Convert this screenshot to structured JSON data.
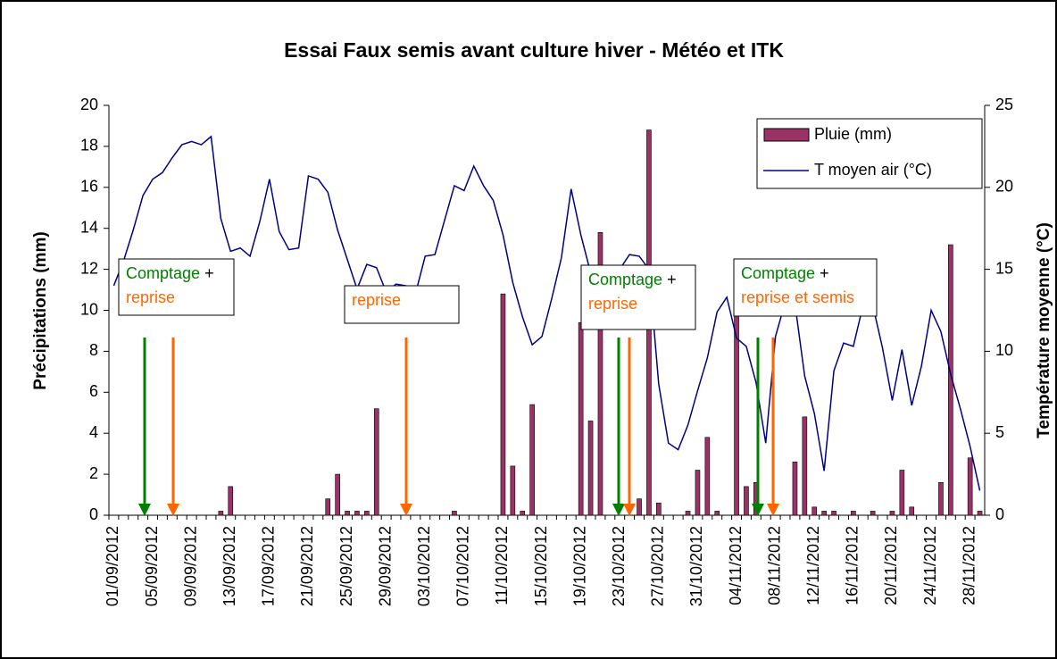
{
  "chart_data": {
    "type": "bar-line",
    "title": "Essai Faux semis avant culture hiver - Météo et ITK",
    "y_label": "Précipitations (mm)",
    "y2_label": "Température moyenne (°C)",
    "categories": [
      "01/09/2012",
      null,
      null,
      null,
      "05/09/2012",
      null,
      null,
      null,
      "09/09/2012",
      null,
      null,
      null,
      "13/09/2012",
      null,
      null,
      null,
      "17/09/2012",
      null,
      null,
      null,
      "21/09/2012",
      null,
      null,
      null,
      "25/09/2012",
      null,
      null,
      null,
      "29/09/2012",
      null,
      null,
      null,
      "03/10/2012",
      null,
      null,
      null,
      "07/10/2012",
      null,
      null,
      null,
      "11/10/2012",
      null,
      null,
      null,
      "15/10/2012",
      null,
      null,
      null,
      "19/10/2012",
      null,
      null,
      null,
      "23/10/2012",
      null,
      null,
      null,
      "27/10/2012",
      null,
      null,
      null,
      "31/10/2012",
      null,
      null,
      null,
      "04/11/2012",
      null,
      null,
      null,
      "08/11/2012",
      null,
      null,
      null,
      "12/11/2012",
      null,
      null,
      null,
      "16/11/2012",
      null,
      null,
      null,
      "20/11/2012",
      null,
      null,
      null,
      "24/11/2012",
      null,
      null,
      null,
      "28/11/2012",
      null
    ],
    "series": [
      {
        "name": "Pluie (mm)",
        "type": "bar",
        "color": "#993366",
        "values": [
          0,
          0,
          0,
          0,
          0,
          0,
          0,
          0,
          0,
          0,
          0,
          0.2,
          1.4,
          0,
          0,
          0,
          0,
          0,
          0,
          0,
          0,
          0,
          0.8,
          2.0,
          0.2,
          0.2,
          0.2,
          5.2,
          0,
          0,
          0,
          0,
          0,
          0,
          0,
          0.2,
          0,
          0,
          0,
          0,
          10.8,
          2.4,
          0.2,
          5.4,
          0,
          0,
          0,
          0,
          9.4,
          4.6,
          13.8,
          0,
          0,
          0,
          0.8,
          18.8,
          0.6,
          0,
          0,
          0.2,
          2.2,
          3.8,
          0.2,
          0,
          10.8,
          1.4,
          1.6,
          0,
          0,
          0,
          2.6,
          4.8,
          0.4,
          0.2,
          0.2,
          0,
          0.2,
          0,
          0.2,
          0,
          0.2,
          2.2,
          0.4,
          0,
          0,
          1.6,
          13.2,
          0,
          2.8,
          0.2
        ]
      },
      {
        "name": "T moyen air (°C)",
        "type": "line",
        "axis": "y2",
        "color": "#000080",
        "values": [
          14.0,
          15.5,
          17.4,
          19.5,
          20.5,
          20.9,
          21.8,
          22.6,
          22.8,
          22.6,
          23.1,
          18.1,
          16.1,
          16.3,
          15.8,
          17.9,
          20.5,
          17.3,
          16.2,
          16.3,
          20.7,
          20.5,
          19.7,
          17.4,
          15.6,
          13.8,
          15.3,
          15.1,
          13.6,
          14.1,
          14.0,
          13.5,
          15.8,
          15.9,
          18.0,
          20.1,
          19.8,
          21.3,
          20.1,
          19.2,
          17.1,
          14.2,
          12.1,
          10.4,
          10.9,
          13.2,
          15.7,
          19.9,
          17.1,
          14.8,
          15.2,
          15.1,
          15.0,
          15.9,
          15.8,
          15.0,
          8.0,
          4.4,
          4.0,
          5.5,
          7.6,
          9.6,
          12.4,
          13.3,
          10.8,
          10.3,
          8.1,
          4.4,
          10.9,
          13.0,
          12.9,
          8.5,
          6.2,
          2.7,
          8.8,
          10.5,
          10.3,
          12.8,
          12.8,
          10.2,
          7.0,
          10.1,
          6.7,
          9.1,
          12.5,
          11.2,
          8.6,
          6.5,
          4.2,
          1.5
        ]
      }
    ],
    "ylim": [
      0,
      20
    ],
    "yticks": [
      0,
      2,
      4,
      6,
      8,
      10,
      12,
      14,
      16,
      18,
      20
    ],
    "y2lim": [
      0,
      25
    ],
    "y2ticks": [
      0,
      5,
      10,
      15,
      20,
      25
    ],
    "legend": "top-right",
    "annotations": [
      {
        "lines": [
          [
            {
              "text": "Comptage",
              "color": "#008000"
            },
            {
              "text": "+",
              "color": "#000000"
            }
          ],
          [
            {
              "text": "reprise",
              "color": "#ff6600"
            }
          ]
        ]
      },
      {
        "lines": [
          [
            {
              "text": "reprise",
              "color": "#ff6600"
            }
          ]
        ]
      },
      {
        "lines": [
          [
            {
              "text": "Comptage",
              "color": "#008000"
            },
            {
              "text": "+",
              "color": "#000000"
            }
          ],
          [
            {
              "text": "reprise",
              "color": "#ff6600"
            }
          ]
        ]
      },
      {
        "lines": [
          [
            {
              "text": "Comptage",
              "color": "#008000"
            },
            {
              "text": "+",
              "color": "#000000"
            }
          ],
          [
            {
              "text": "reprise et semis",
              "color": "#ff6600"
            }
          ]
        ]
      }
    ]
  }
}
